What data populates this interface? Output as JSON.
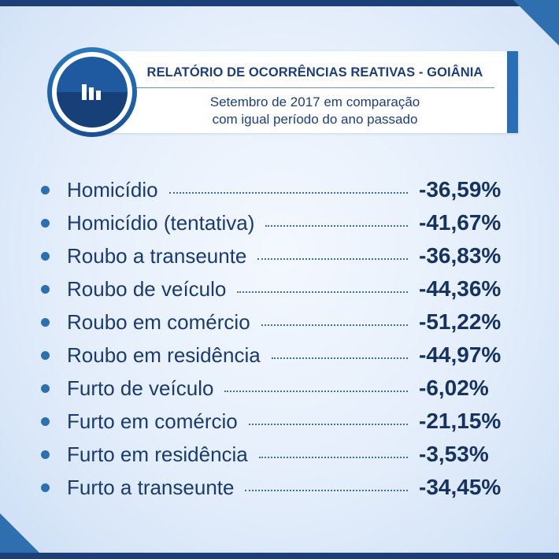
{
  "header": {
    "title": "RELATÓRIO DE OCORRÊNCIAS REATIVAS - GOIÂNIA",
    "subtitle_line1": "Setembro de 2017 em comparação",
    "subtitle_line2": "com igual período do ano passado",
    "icon": "bar-chart-icon"
  },
  "colors": {
    "navy": "#1e3f74",
    "accent_blue": "#2a6fb4",
    "background": "#e4eefb"
  },
  "items": [
    {
      "label": "Homicídio",
      "value": "-36,59%"
    },
    {
      "label": "Homicídio (tentativa)",
      "value": "-41,67%"
    },
    {
      "label": "Roubo a transeunte",
      "value": "-36,83%"
    },
    {
      "label": "Roubo de veículo",
      "value": "-44,36%"
    },
    {
      "label": "Roubo em comércio",
      "value": "-51,22%"
    },
    {
      "label": "Roubo em residência",
      "value": "-44,97%"
    },
    {
      "label": "Furto de veículo",
      "value": "-6,02%"
    },
    {
      "label": "Furto em comércio",
      "value": "-21,15%"
    },
    {
      "label": "Furto em residência",
      "value": "-3,53%"
    },
    {
      "label": "Furto a transeunte",
      "value": "-34,45%"
    }
  ]
}
